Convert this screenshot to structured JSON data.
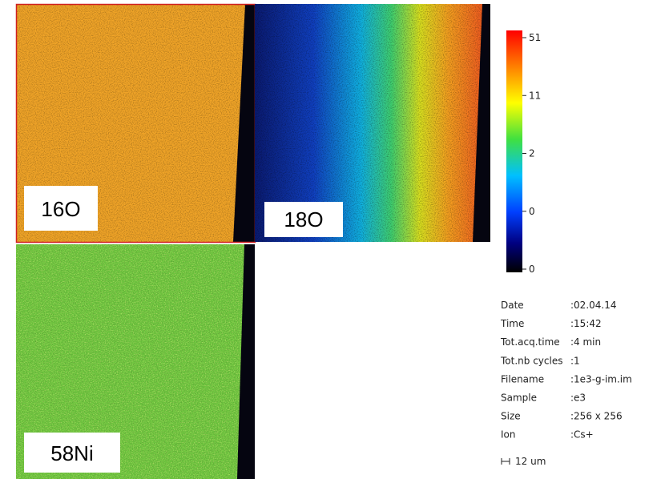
{
  "panels": [
    {
      "label": "16O"
    },
    {
      "label": "18O"
    },
    {
      "label": "58Ni"
    }
  ],
  "colorbar": {
    "ticks": [
      "51",
      "11",
      "2",
      "0",
      "0"
    ]
  },
  "info": {
    "rows": [
      {
        "key": "Date",
        "value": ":02.04.14"
      },
      {
        "key": "Time",
        "value": ":15:42"
      },
      {
        "key": "Tot.acq.time",
        "value": ":4 min"
      },
      {
        "key": "Tot.nb cycles",
        "value": ":1"
      },
      {
        "key": "Filename",
        "value": ":1e3-g-im.im"
      },
      {
        "key": "Sample",
        "value": ":e3"
      },
      {
        "key": "Size",
        "value": ":256 x 256"
      },
      {
        "key": "Ion",
        "value": ":Cs+"
      }
    ]
  },
  "scale_bar": "12 um"
}
